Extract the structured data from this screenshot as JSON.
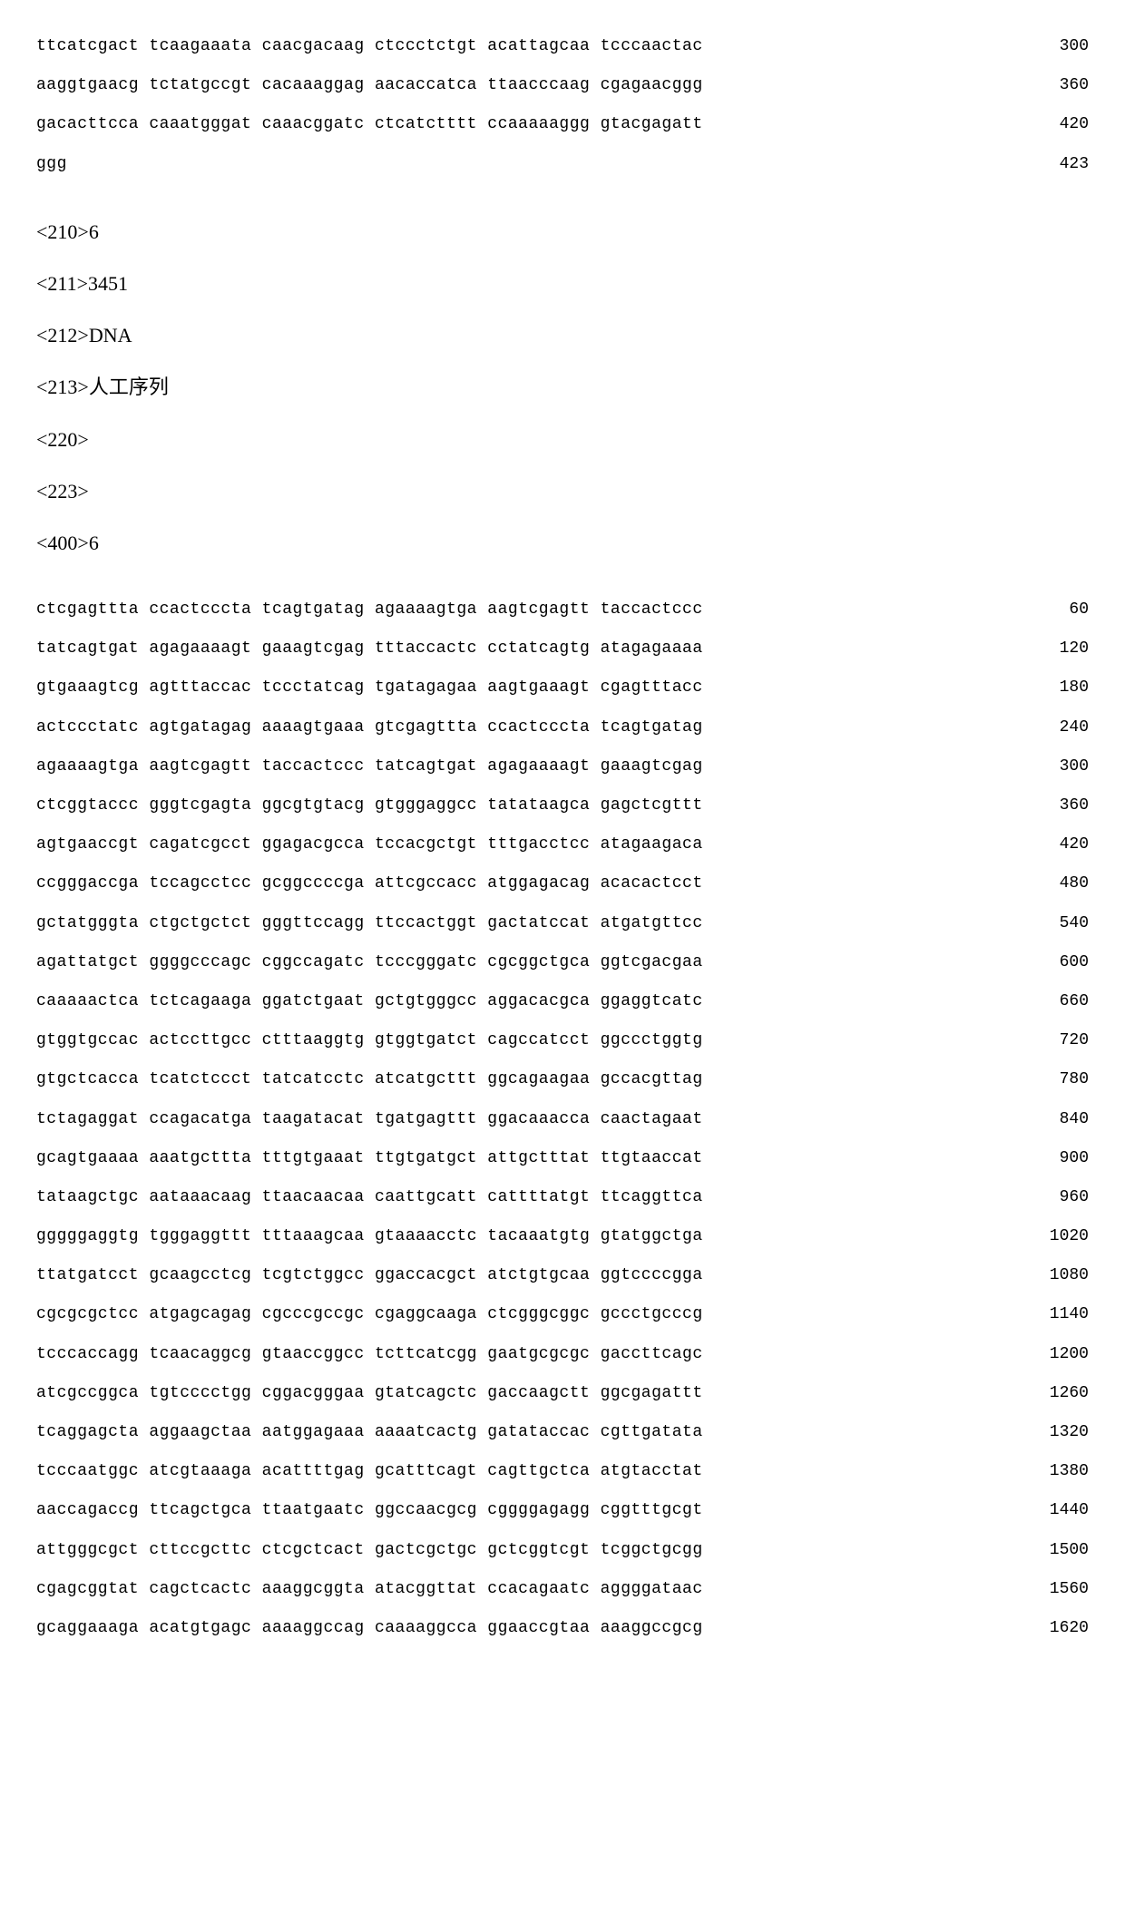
{
  "top_sequence": {
    "lines": [
      {
        "seq": "ttcatcgact tcaagaaata caacgacaag ctccctctgt acattagcaa tcccaactac",
        "num": "300"
      },
      {
        "seq": "aaggtgaacg tctatgccgt cacaaaggag aacaccatca ttaacccaag cgagaacggg",
        "num": "360"
      },
      {
        "seq": "gacacttcca caaatgggat caaacggatc ctcatctttt ccaaaaaggg gtacgagatt",
        "num": "420"
      },
      {
        "seq": "ggg",
        "num": "423"
      }
    ]
  },
  "headers": [
    "<210>6",
    "<211>3451",
    "<212>DNA",
    "<213>人工序列",
    "<220>",
    "<223>",
    "<400>6"
  ],
  "main_sequence": {
    "lines": [
      {
        "seq": "ctcgagttta ccactcccta tcagtgatag agaaaagtga aagtcgagtt taccactccc",
        "num": "60"
      },
      {
        "seq": "tatcagtgat agagaaaagt gaaagtcgag tttaccactc cctatcagtg atagagaaaa",
        "num": "120"
      },
      {
        "seq": "gtgaaagtcg agtttaccac tccctatcag tgatagagaa aagtgaaagt cgagtttacc",
        "num": "180"
      },
      {
        "seq": "actccctatc agtgatagag aaaagtgaaa gtcgagttta ccactcccta tcagtgatag",
        "num": "240"
      },
      {
        "seq": "agaaaagtga aagtcgagtt taccactccc tatcagtgat agagaaaagt gaaagtcgag",
        "num": "300"
      },
      {
        "seq": "ctcggtaccc gggtcgagta ggcgtgtacg gtgggaggcc tatataagca gagctcgttt",
        "num": "360"
      },
      {
        "seq": "agtgaaccgt cagatcgcct ggagacgcca tccacgctgt tttgacctcc atagaagaca",
        "num": "420"
      },
      {
        "seq": "ccgggaccga tccagcctcc gcggccccga attcgccacc atggagacag acacactcct",
        "num": "480"
      },
      {
        "seq": "gctatgggta ctgctgctct gggttccagg ttccactggt gactatccat atgatgttcc",
        "num": "540"
      },
      {
        "seq": "agattatgct ggggcccagc cggccagatc tcccgggatc cgcggctgca ggtcgacgaa",
        "num": "600"
      },
      {
        "seq": "caaaaactca tctcagaaga ggatctgaat gctgtgggcc aggacacgca ggaggtcatc",
        "num": "660"
      },
      {
        "seq": "gtggtgccac actccttgcc ctttaaggtg gtggtgatct cagccatcct ggccctggtg",
        "num": "720"
      },
      {
        "seq": "gtgctcacca tcatctccct tatcatcctc atcatgcttt ggcagaagaa gccacgttag",
        "num": "780"
      },
      {
        "seq": "tctagaggat ccagacatga taagatacat tgatgagttt ggacaaacca caactagaat",
        "num": "840"
      },
      {
        "seq": "gcagtgaaaa aaatgcttta tttgtgaaat ttgtgatgct attgctttat ttgtaaccat",
        "num": "900"
      },
      {
        "seq": "tataagctgc aataaacaag ttaacaacaa caattgcatt cattttatgt ttcaggttca",
        "num": "960"
      },
      {
        "seq": "gggggaggtg tgggaggttt tttaaagcaa gtaaaacctc tacaaatgtg gtatggctga",
        "num": "1020"
      },
      {
        "seq": "ttatgatcct gcaagcctcg tcgtctggcc ggaccacgct atctgtgcaa ggtccccgga",
        "num": "1080"
      },
      {
        "seq": "cgcgcgctcc atgagcagag cgcccgccgc cgaggcaaga ctcgggcggc gccctgcccg",
        "num": "1140"
      },
      {
        "seq": "tcccaccagg tcaacaggcg gtaaccggcc tcttcatcgg gaatgcgcgc gaccttcagc",
        "num": "1200"
      },
      {
        "seq": "atcgccggca tgtcccctgg cggacgggaa gtatcagctc gaccaagctt ggcgagattt",
        "num": "1260"
      },
      {
        "seq": "tcaggagcta aggaagctaa aatggagaaa aaaatcactg gatataccac cgttgatata",
        "num": "1320"
      },
      {
        "seq": "tcccaatggc atcgtaaaga acattttgag gcatttcagt cagttgctca atgtacctat",
        "num": "1380"
      },
      {
        "seq": "aaccagaccg ttcagctgca ttaatgaatc ggccaacgcg cggggagagg cggtttgcgt",
        "num": "1440"
      },
      {
        "seq": "attgggcgct cttccgcttc ctcgctcact gactcgctgc gctcggtcgt tcggctgcgg",
        "num": "1500"
      },
      {
        "seq": "cgagcggtat cagctcactc aaaggcggta atacggttat ccacagaatc aggggataac",
        "num": "1560"
      },
      {
        "seq": "gcaggaaaga acatgtgagc aaaaggccag caaaaggcca ggaaccgtaa aaaggccgcg",
        "num": "1620"
      }
    ]
  }
}
